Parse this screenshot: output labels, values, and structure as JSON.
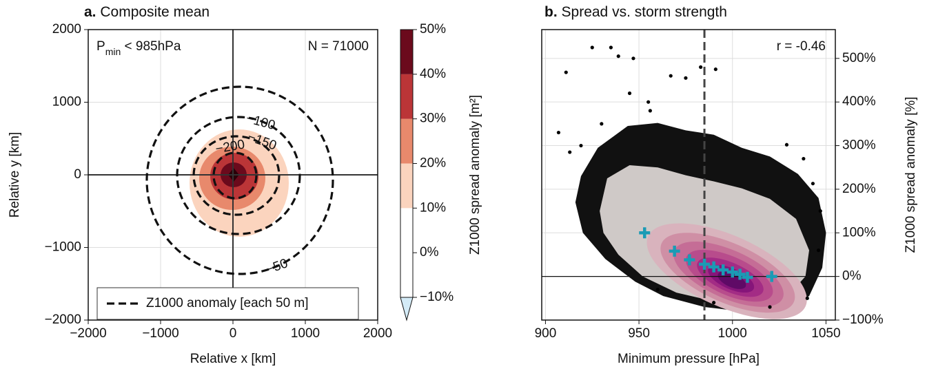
{
  "chart_data": [
    {
      "type": "contour",
      "title_prefix": "a.",
      "title": "Composite mean",
      "xlabel": "Relative x [km]",
      "ylabel": "Relative y [km]",
      "xlim": [
        -2000,
        2000
      ],
      "ylim": [
        -2000,
        2000
      ],
      "xticks": [
        {
          "value": -2000,
          "label": "−2000"
        },
        {
          "value": -1000,
          "label": "−1000"
        },
        0,
        1000,
        2000
      ],
      "yticks": [
        {
          "value": -2000,
          "label": "−2000"
        },
        {
          "value": -1000,
          "label": "−1000"
        },
        0,
        1000,
        2000
      ],
      "grid": true,
      "condition": {
        "symbol": "P",
        "subscript": "min",
        "rest": " < 985hPa"
      },
      "count": "N = 71000",
      "contours": [
        {
          "value": -50,
          "label": "−50"
        },
        {
          "value": -100,
          "label": "−100"
        },
        {
          "value": -150,
          "label": "−150"
        },
        {
          "value": -200,
          "label": "−200"
        }
      ],
      "legend": "Z1000 anomaly [each 50 m]",
      "colorbar": {
        "label": "Z1000 spread anomaly [m²]",
        "levels": [
          {
            "value": -10,
            "label": "−10%"
          },
          {
            "value": 0,
            "label": "0%"
          },
          {
            "value": 10,
            "label": "10%"
          },
          {
            "value": 20,
            "label": "20%"
          },
          {
            "value": 30,
            "label": "30%"
          },
          {
            "value": 40,
            "label": "40%"
          },
          {
            "value": 50,
            "label": "50%"
          }
        ],
        "colors": [
          "#ffffff",
          "#ffffff",
          "#fbd4be",
          "#e8896c",
          "#bb3537",
          "#6b0a1c"
        ],
        "extend_color": "#d4ebf7"
      }
    },
    {
      "type": "scatter",
      "title_prefix": "b.",
      "title": "Spread vs. storm strength",
      "xlabel": "Minimum pressure [hPa]",
      "ylabel": "Z1000 spread anomaly [%]",
      "xlim": [
        898,
        1055
      ],
      "ylim": [
        -100,
        566
      ],
      "xticks": [
        900,
        950,
        1000,
        1050
      ],
      "yticks": [
        {
          "value": -100,
          "label": "−100%"
        },
        {
          "value": 0,
          "label": "0%"
        },
        {
          "value": 100,
          "label": "100%"
        },
        {
          "value": 200,
          "label": "200%"
        },
        {
          "value": 300,
          "label": "300%"
        },
        {
          "value": 400,
          "label": "400%"
        },
        {
          "value": 500,
          "label": "500%"
        }
      ],
      "grid": true,
      "annotation": "r = -0.46",
      "threshold": 985,
      "points": {
        "color": "#000000",
        "x": [
          911,
          907,
          925,
          935,
          939,
          947,
          955,
          956,
          967,
          975,
          983,
          991,
          919,
          913,
          945,
          930,
          1029,
          1038,
          1043,
          1047,
          1046,
          1040,
          1020,
          990,
          960
        ],
        "y": [
          468,
          330,
          525,
          525,
          505,
          500,
          400,
          380,
          460,
          455,
          480,
          475,
          300,
          285,
          420,
          350,
          302,
          270,
          213,
          150,
          60,
          -50,
          -70,
          -60,
          -30
        ]
      },
      "means": {
        "color": "#1a9bb5",
        "x": [
          953,
          969,
          977,
          985,
          990,
          995,
          1000,
          1004,
          1008,
          1021
        ],
        "y": [
          100,
          58,
          38,
          28,
          22,
          15,
          10,
          5,
          -2,
          0
        ]
      }
    }
  ]
}
